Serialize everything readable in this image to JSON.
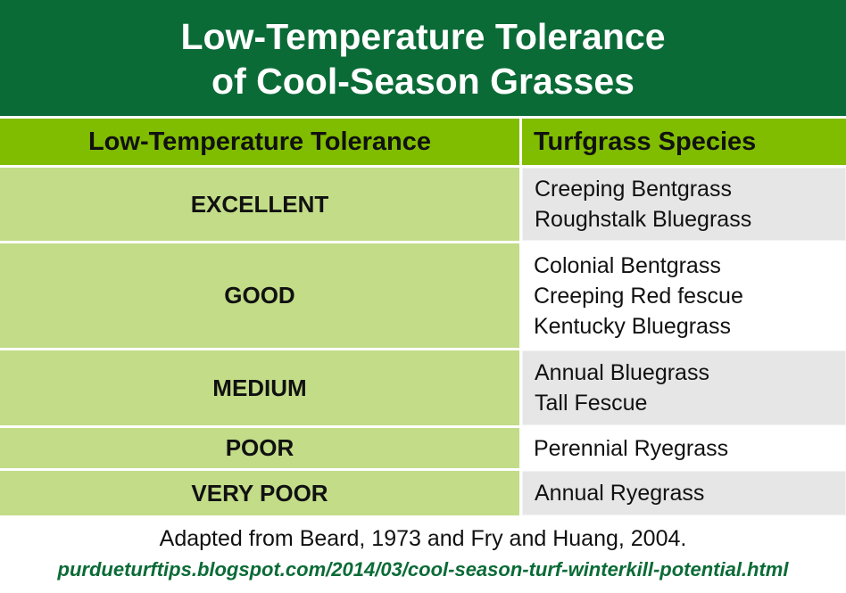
{
  "title": {
    "line1": "Low-Temperature Tolerance",
    "line2": "of Cool-Season Grasses"
  },
  "headers": {
    "tolerance": "Low-Temperature Tolerance",
    "species": "Turfgrass Species"
  },
  "rows": [
    {
      "tolerance": "EXCELLENT",
      "species": [
        "Creeping Bentgrass",
        "Roughstalk Bluegrass"
      ]
    },
    {
      "tolerance": "GOOD",
      "species": [
        "Colonial Bentgrass",
        "Creeping Red fescue",
        "Kentucky Bluegrass"
      ]
    },
    {
      "tolerance": "MEDIUM",
      "species": [
        "Annual Bluegrass",
        "Tall Fescue"
      ]
    },
    {
      "tolerance": "POOR",
      "species": [
        "Perennial Ryegrass"
      ]
    },
    {
      "tolerance": "VERY POOR",
      "species": [
        "Annual Ryegrass"
      ]
    }
  ],
  "footer": {
    "source": "Adapted from Beard, 1973 and Fry and Huang, 2004.",
    "url": "purdueturftips.blogspot.com/2014/03/cool-season-turf-winterkill-potential.html"
  }
}
